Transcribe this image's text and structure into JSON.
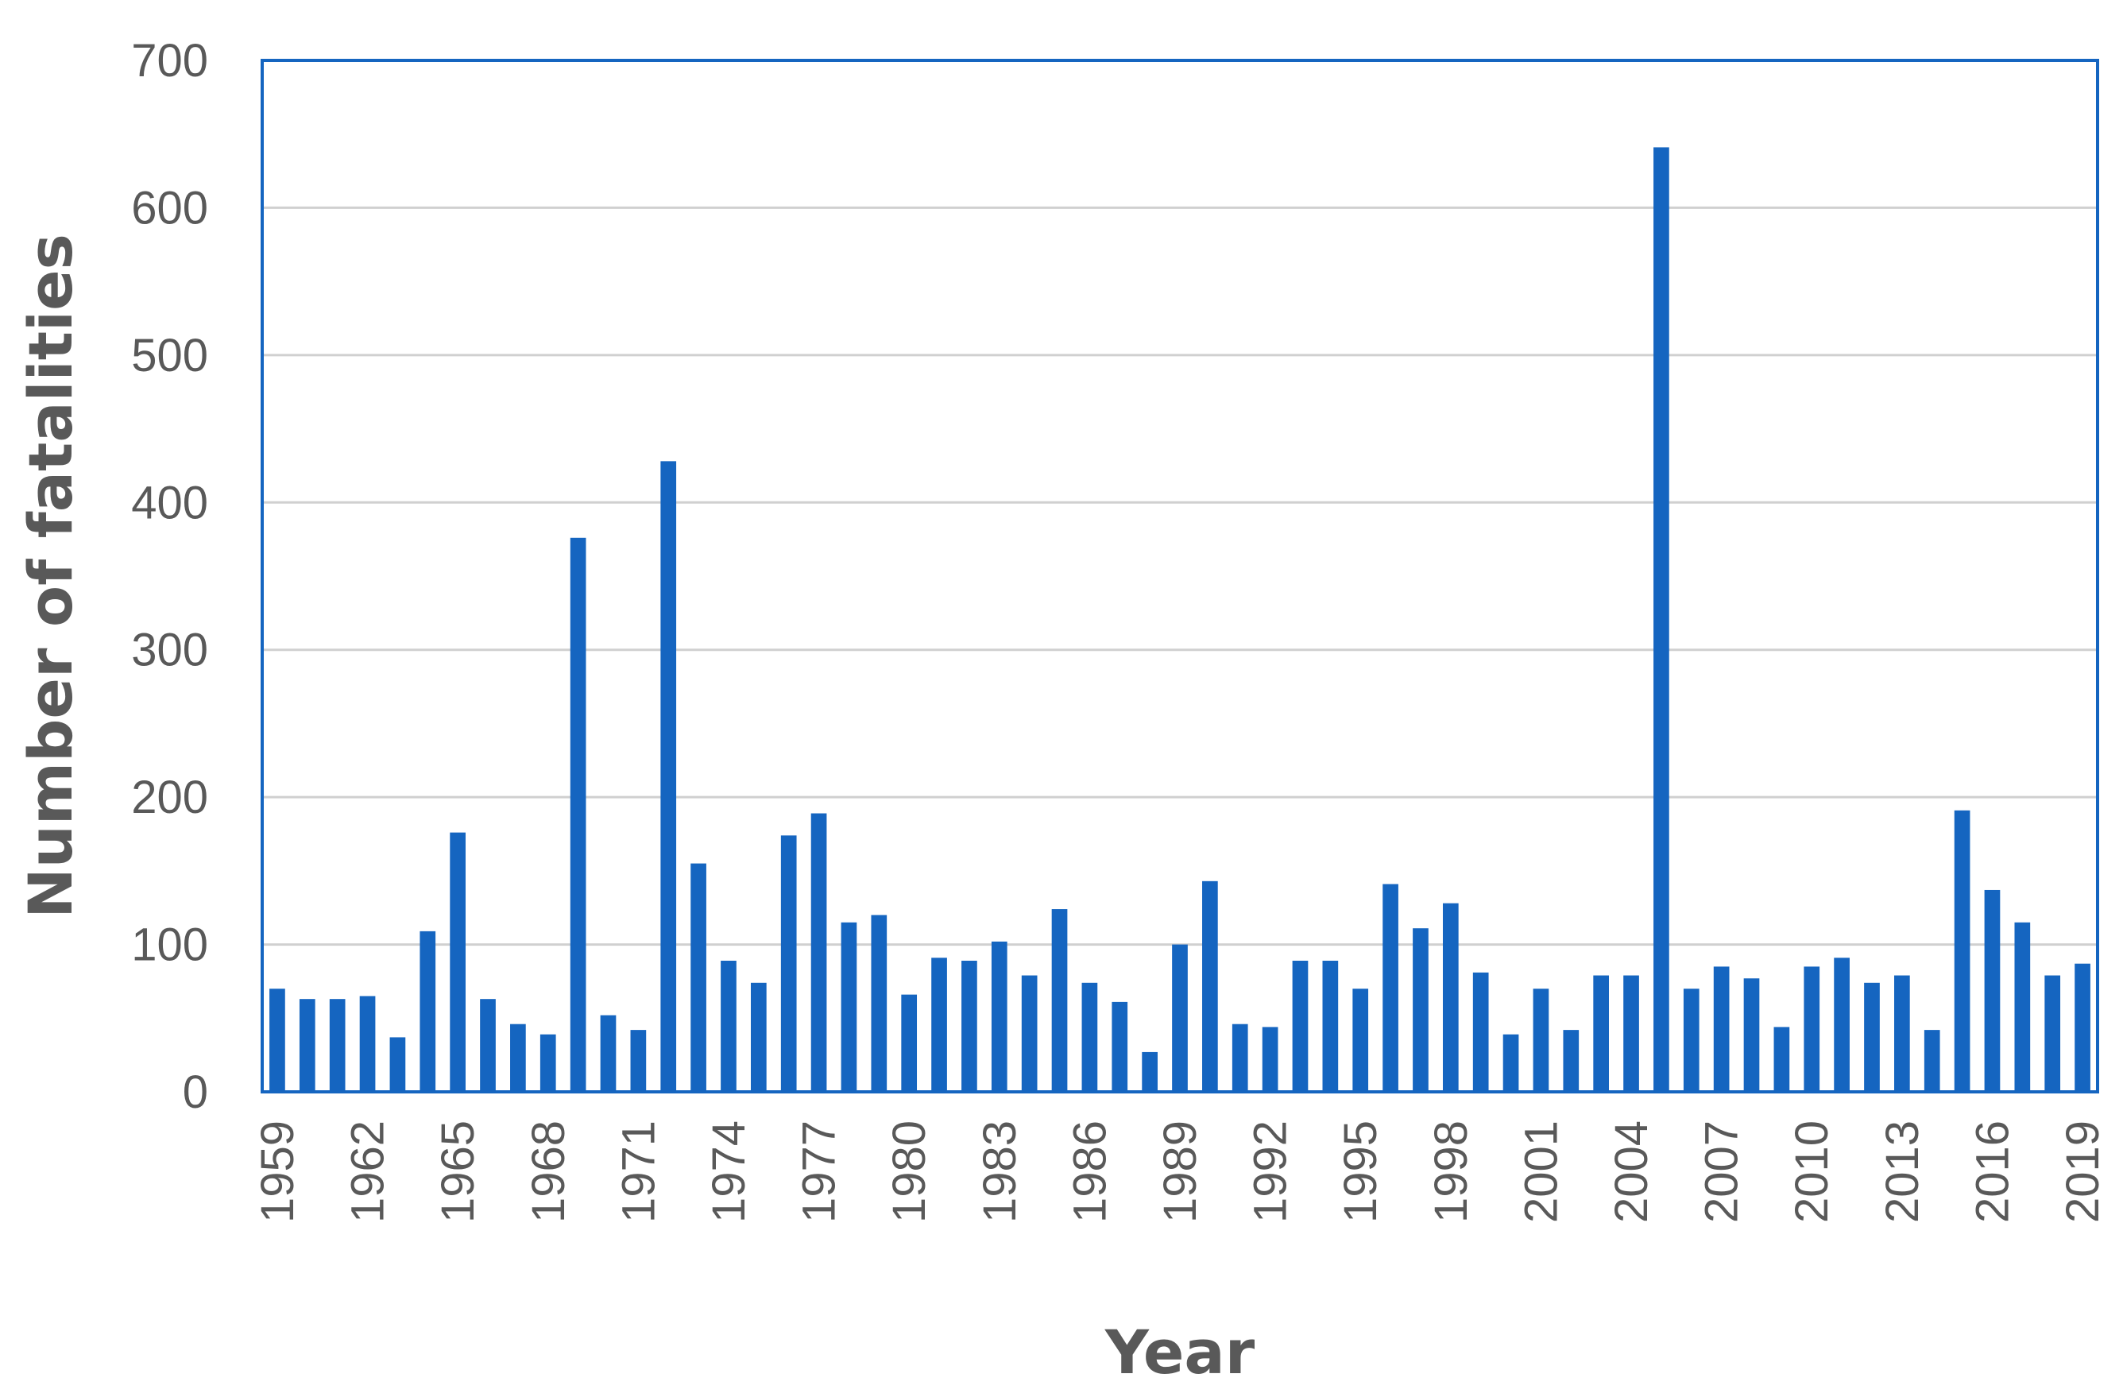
{
  "chart_data": {
    "type": "bar",
    "title": "",
    "xlabel": "Year",
    "ylabel": "Number of fatalities",
    "ylim": [
      0,
      700
    ],
    "yticks": [
      0,
      100,
      200,
      300,
      400,
      500,
      600,
      700
    ],
    "grid": true,
    "legend": "none",
    "bar_color": "#1565c0",
    "border_color": "#1565c0",
    "categories": [
      "1959",
      "1960",
      "1961",
      "1962",
      "1963",
      "1964",
      "1965",
      "1966",
      "1967",
      "1968",
      "1969",
      "1970",
      "1971",
      "1972",
      "1973",
      "1974",
      "1975",
      "1976",
      "1977",
      "1978",
      "1979",
      "1980",
      "1981",
      "1982",
      "1983",
      "1984",
      "1985",
      "1986",
      "1987",
      "1988",
      "1989",
      "1990",
      "1991",
      "1992",
      "1993",
      "1994",
      "1995",
      "1996",
      "1997",
      "1998",
      "1999",
      "2000",
      "2001",
      "2002",
      "2003",
      "2004",
      "2005",
      "2006",
      "2007",
      "2008",
      "2009",
      "2010",
      "2011",
      "2012",
      "2013",
      "2014",
      "2015",
      "2016",
      "2017",
      "2018",
      "2019"
    ],
    "x_tick_labels": [
      "1959",
      "1962",
      "1965",
      "1968",
      "1971",
      "1974",
      "1977",
      "1980",
      "1983",
      "1986",
      "1989",
      "1992",
      "1995",
      "1998",
      "2001",
      "2004",
      "2007",
      "2010",
      "2013",
      "2016",
      "2019"
    ],
    "values": [
      70,
      63,
      63,
      65,
      37,
      109,
      176,
      63,
      46,
      39,
      376,
      52,
      42,
      428,
      155,
      89,
      74,
      174,
      189,
      115,
      120,
      66,
      91,
      89,
      102,
      79,
      124,
      74,
      61,
      27,
      100,
      143,
      46,
      44,
      89,
      89,
      70,
      141,
      111,
      128,
      81,
      39,
      70,
      42,
      79,
      79,
      641,
      70,
      85,
      77,
      44,
      85,
      91,
      74,
      79,
      42,
      191,
      137,
      115,
      79,
      87
    ]
  }
}
